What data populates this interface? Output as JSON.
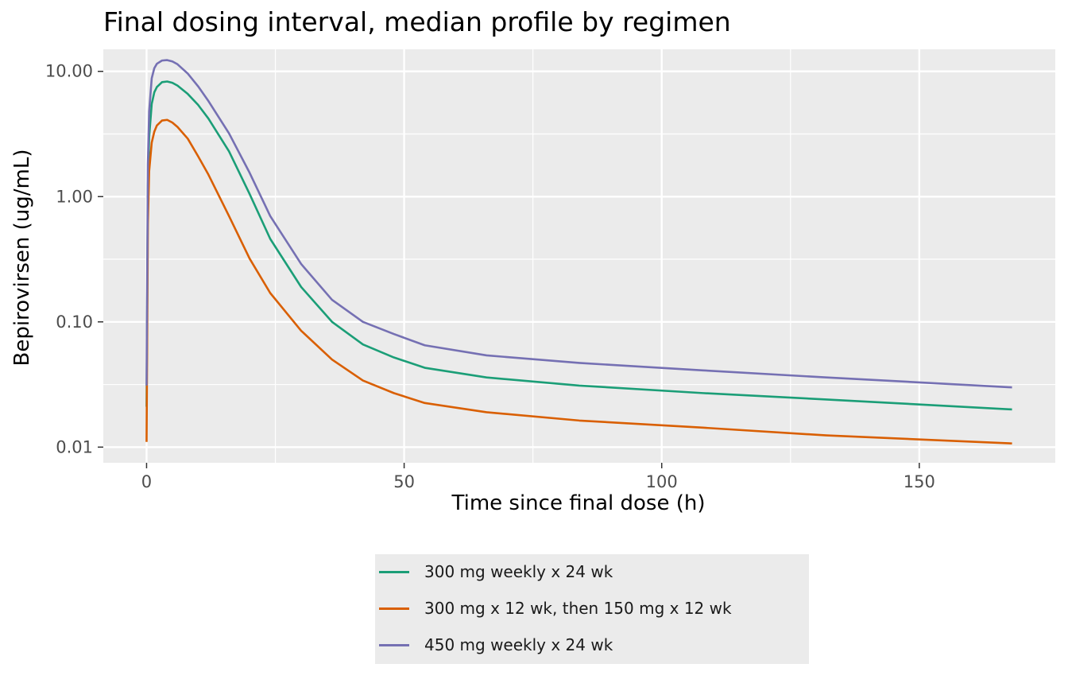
{
  "chart_data": {
    "type": "line",
    "title": "Final dosing interval, median profile by regimen",
    "xlabel": "Time since final dose (h)",
    "ylabel": "Bepirovirsen (ug/mL)",
    "xlim": [
      -8.4,
      176.4
    ],
    "ylim": [
      0.0075,
      15.0
    ],
    "y_scale": "log10",
    "x_ticks": [
      0,
      50,
      100,
      150
    ],
    "x_tick_labels": [
      "0",
      "50",
      "100",
      "150"
    ],
    "y_ticks": [
      0.01,
      0.1,
      1,
      10
    ],
    "y_tick_labels": [
      "0.01",
      "0.10",
      "1.00",
      "10.00"
    ],
    "grid": true,
    "legend_position": "bottom",
    "series": [
      {
        "name": "300 mg weekly x 24 wk",
        "color": "#1b9e77",
        "x": [
          0,
          0.25,
          0.5,
          1,
          1.5,
          2,
          3,
          4,
          5,
          6,
          8,
          10,
          12,
          16,
          20,
          24,
          30,
          36,
          42,
          48,
          54,
          66,
          84,
          108,
          132,
          168
        ],
        "y": [
          0.021,
          1.2,
          3.0,
          5.5,
          6.8,
          7.5,
          8.2,
          8.3,
          8.1,
          7.7,
          6.6,
          5.4,
          4.2,
          2.3,
          1.05,
          0.46,
          0.19,
          0.1,
          0.066,
          0.052,
          0.043,
          0.036,
          0.031,
          0.027,
          0.024,
          0.02
        ]
      },
      {
        "name": "300 mg x 12 wk, then 150 mg x 12 wk",
        "color": "#d95f02",
        "x": [
          0,
          0.25,
          0.5,
          1,
          1.5,
          2,
          3,
          4,
          5,
          6,
          8,
          10,
          12,
          16,
          20,
          24,
          30,
          36,
          42,
          48,
          54,
          66,
          84,
          108,
          132,
          168
        ],
        "y": [
          0.011,
          0.6,
          1.6,
          2.7,
          3.3,
          3.7,
          4.05,
          4.1,
          3.9,
          3.6,
          2.9,
          2.1,
          1.5,
          0.7,
          0.32,
          0.17,
          0.085,
          0.05,
          0.034,
          0.027,
          0.0225,
          0.019,
          0.0163,
          0.0143,
          0.0124,
          0.0107
        ]
      },
      {
        "name": "450 mg weekly x 24 wk",
        "color": "#7570b3",
        "x": [
          0,
          0.25,
          0.5,
          1,
          1.5,
          2,
          3,
          4,
          5,
          6,
          8,
          10,
          12,
          16,
          20,
          24,
          30,
          36,
          42,
          48,
          54,
          66,
          84,
          108,
          132,
          168
        ],
        "y": [
          0.031,
          1.8,
          4.8,
          8.8,
          10.6,
          11.5,
          12.2,
          12.3,
          12.0,
          11.4,
          9.6,
          7.6,
          5.8,
          3.2,
          1.55,
          0.7,
          0.29,
          0.15,
          0.1,
          0.08,
          0.065,
          0.054,
          0.047,
          0.041,
          0.036,
          0.03
        ]
      }
    ]
  },
  "legend": {
    "items": [
      {
        "label": "300 mg weekly x 24 wk",
        "color": "#1b9e77"
      },
      {
        "label": "300 mg x 12 wk, then 150 mg x 12 wk",
        "color": "#d95f02"
      },
      {
        "label": "450 mg weekly x 24 wk",
        "color": "#7570b3"
      }
    ]
  },
  "colors": {
    "panel_background": "#ebebeb",
    "gridline": "#ffffff",
    "axis_text": "#4d4d4d"
  }
}
